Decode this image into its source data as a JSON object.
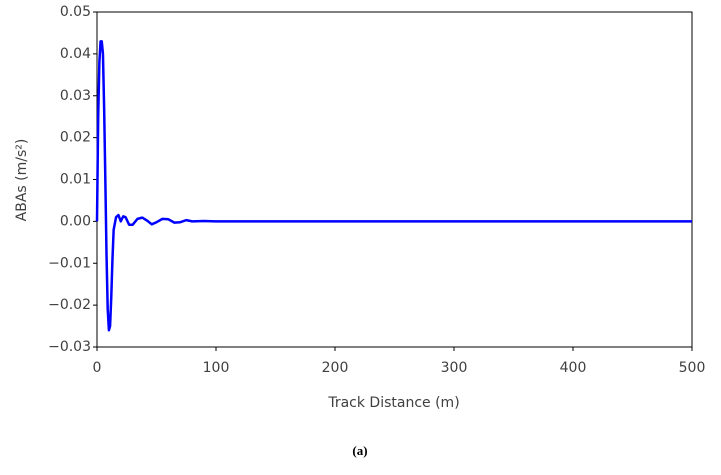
{
  "chart_data": {
    "type": "line",
    "x_label": "Track Distance (m)",
    "y_label": "ABAs (m/s²)",
    "caption": "(a)",
    "x": [
      0,
      1,
      2,
      3,
      4,
      5,
      6,
      7,
      8,
      9,
      10,
      11,
      12,
      13,
      14,
      16,
      18,
      20,
      22,
      24,
      27,
      30,
      34,
      38,
      42,
      46,
      50,
      55,
      60,
      65,
      70,
      75,
      80,
      90,
      100,
      150,
      200,
      300,
      400,
      500
    ],
    "series": [
      {
        "color": "#0000ff",
        "values": [
          0,
          0.025,
          0.038,
          0.043,
          0.043,
          0.04,
          0.027,
          0.01,
          -0.008,
          -0.021,
          -0.026,
          -0.025,
          -0.018,
          -0.009,
          -0.002,
          0.001,
          0.0015,
          0,
          0.0012,
          0.001,
          -0.0008,
          -0.0008,
          0.0006,
          0.0009,
          0.0002,
          -0.0007,
          -0.0002,
          0.0006,
          0.0005,
          -0.0003,
          -0.0002,
          0.0003,
          0,
          0.0001,
          0,
          0,
          0,
          0,
          0,
          0
        ]
      }
    ],
    "xlim": [
      0,
      500
    ],
    "xticks": [
      0,
      100,
      200,
      300,
      400,
      500
    ],
    "ylim": [
      -0.03,
      0.05
    ],
    "yticks": [
      {
        "value": -0.03,
        "label": "−0.03"
      },
      {
        "value": -0.02,
        "label": "−0.02"
      },
      {
        "value": -0.01,
        "label": "−0.01"
      },
      {
        "value": 0,
        "label": "0.00"
      },
      0.01,
      0.02,
      0.03,
      0.04,
      0.05
    ],
    "grid": false
  }
}
